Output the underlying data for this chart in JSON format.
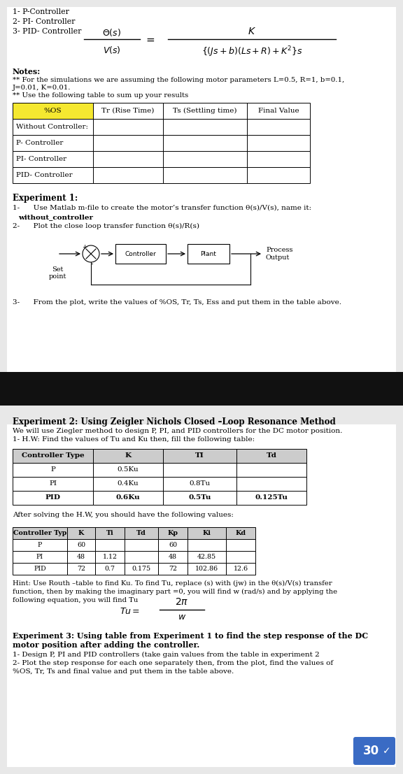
{
  "bg_color": "#e8e8e8",
  "page_bg": "#ffffff",
  "title_items": [
    "1- P-Controller",
    "2- PI- Controller",
    "3- PID- Controller"
  ],
  "notes_line1": "** For the simulations we are assuming the following motor parameters L=0.5, R=1, b=0.1,",
  "notes_line2": "J=0.01, K=0.01.",
  "notes_line3": "** Use the following table to sum up your results",
  "table1_headers": [
    "%OS",
    "Tr (Rise Time)",
    "Ts (Settling time)",
    "Final Value"
  ],
  "table1_rows": [
    "Without Controller:",
    "P- Controller",
    "PI- Controller",
    "PID- Controller"
  ],
  "table2_headers": [
    "Controller Type",
    "K",
    "TI",
    "Td"
  ],
  "table2_rows": [
    [
      "P",
      "0.5Ku",
      "",
      ""
    ],
    [
      "PI",
      "0.4Ku",
      "0.8Tu",
      ""
    ],
    [
      "PID",
      "0.6Ku",
      "0.5Tu",
      "0.125Tu"
    ]
  ],
  "table3_headers": [
    "Controller Typ",
    "K",
    "Ti",
    "Td",
    "Kp",
    "Ki",
    "Kd"
  ],
  "table3_rows": [
    [
      "P",
      "60",
      "",
      "",
      "60",
      "",
      ""
    ],
    [
      "PI",
      "48",
      "1.12",
      "",
      "48",
      "42.85",
      ""
    ],
    [
      "PID",
      "72",
      "0.7",
      "0.175",
      "72",
      "102.86",
      "12.6"
    ]
  ],
  "hint_line1": "Hint: Use Routh –table to find Ku. To find Tu, replace (s) with (jw) in the θ(s)/V(s) transfer",
  "hint_line2": "function, then by making the imaginary part =0, you will find w (rad/s) and by applying the",
  "hint_line3": "following equation, you will find Tu",
  "exp3_item1": "1- Design P, PI and PID controllers (take gain values from the table in experiment 2",
  "exp3_item2a": "2- Plot the step response for each one separately then, from the plot, find the values of",
  "exp3_item2b": "%OS, Tr, Ts and final value and put them in the table above.",
  "stamp_color": "#3a6bc4",
  "dark_bar_color": "#111111",
  "yellow_color": "#f5e830"
}
